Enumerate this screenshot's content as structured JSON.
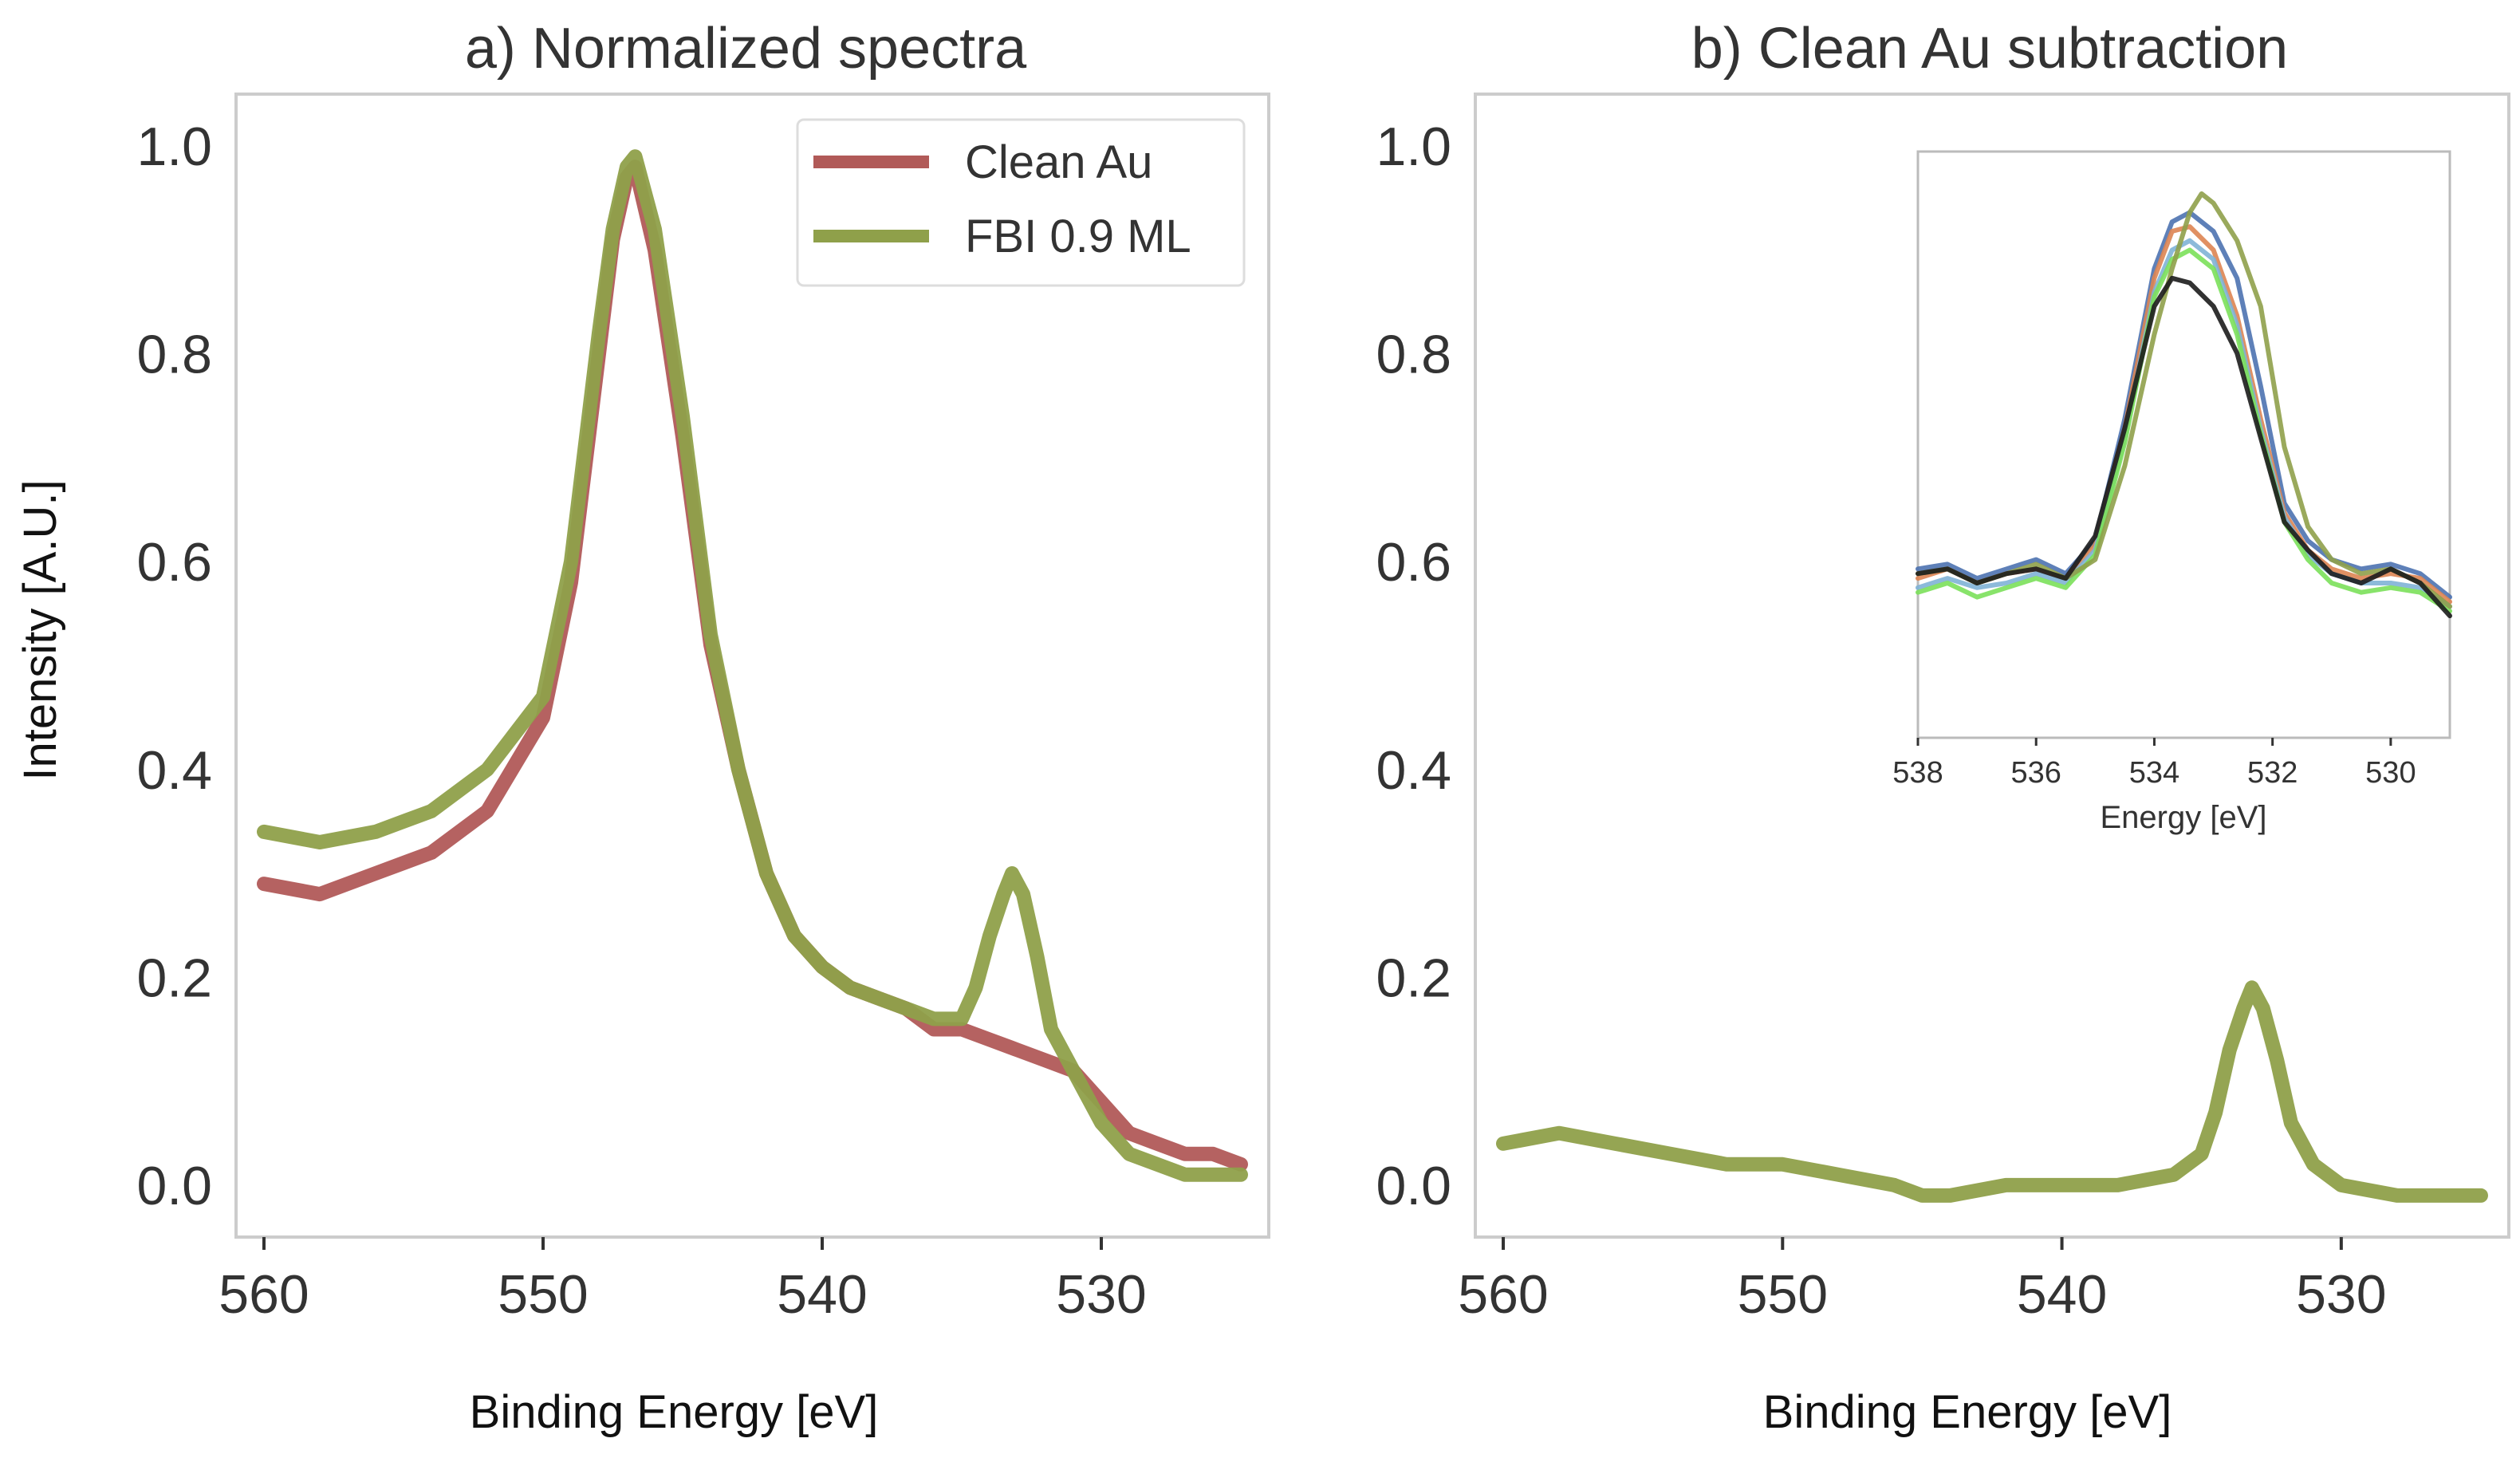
{
  "chart_data": [
    {
      "type": "line",
      "title": "a) Normalized spectra",
      "xlabel": "Binding Energy [eV]",
      "ylabel": "Intensity [A.U.]",
      "xlim": [
        561,
        524
      ],
      "ylim": [
        -0.05,
        1.05
      ],
      "x_reversed": true,
      "xticks": [
        560,
        550,
        540,
        530
      ],
      "xtick_labels": [
        "560",
        "550",
        "540",
        "530"
      ],
      "yticks": [
        0.0,
        0.2,
        0.4,
        0.6,
        0.8,
        1.0
      ],
      "ytick_labels": [
        "0.0",
        "0.2",
        "0.4",
        "0.6",
        "0.8",
        "1.0"
      ],
      "grid": false,
      "legend_position": "top-right",
      "series": [
        {
          "name": "Clean Au",
          "color": "#b15a58",
          "x": [
            560,
            558,
            556,
            554,
            552,
            550,
            549,
            548,
            547.5,
            547,
            546.7,
            546,
            545,
            544,
            543,
            542,
            541,
            540,
            539,
            538,
            537,
            536,
            535,
            534,
            533,
            532,
            531,
            530,
            529,
            528,
            527,
            526,
            525
          ],
          "y": [
            0.29,
            0.28,
            0.3,
            0.32,
            0.36,
            0.45,
            0.58,
            0.8,
            0.91,
            0.97,
            0.98,
            0.9,
            0.72,
            0.52,
            0.4,
            0.3,
            0.24,
            0.21,
            0.19,
            0.18,
            0.17,
            0.15,
            0.15,
            0.14,
            0.13,
            0.12,
            0.11,
            0.08,
            0.05,
            0.04,
            0.03,
            0.03,
            0.02
          ]
        },
        {
          "name": "FBI 0.9 ML",
          "color": "#8fa04a",
          "x": [
            560,
            558,
            556,
            554,
            552,
            550,
            549,
            548,
            547.5,
            547,
            546.7,
            546,
            545,
            544,
            543,
            542,
            541,
            540,
            539,
            538,
            537,
            536,
            535,
            534.5,
            534,
            533.5,
            533.2,
            532.8,
            532.3,
            531.8,
            531,
            530,
            529,
            528,
            527,
            526,
            525
          ],
          "y": [
            0.34,
            0.33,
            0.34,
            0.36,
            0.4,
            0.47,
            0.6,
            0.82,
            0.92,
            0.98,
            0.99,
            0.92,
            0.74,
            0.53,
            0.4,
            0.3,
            0.24,
            0.21,
            0.19,
            0.18,
            0.17,
            0.16,
            0.16,
            0.19,
            0.24,
            0.28,
            0.3,
            0.28,
            0.22,
            0.15,
            0.11,
            0.06,
            0.03,
            0.02,
            0.01,
            0.01,
            0.01
          ]
        }
      ]
    },
    {
      "type": "line",
      "title": "b) Clean Au subtraction",
      "xlabel": "Binding Energy [eV]",
      "xlim": [
        561,
        524
      ],
      "ylim": [
        -0.05,
        1.05
      ],
      "x_reversed": true,
      "xticks": [
        560,
        550,
        540,
        530
      ],
      "xtick_labels": [
        "560",
        "550",
        "540",
        "530"
      ],
      "yticks": [
        0.0,
        0.2,
        0.4,
        0.6,
        0.8,
        1.0
      ],
      "ytick_labels": [
        "0.0",
        "0.2",
        "0.4",
        "0.6",
        "0.8",
        "1.0"
      ],
      "grid": false,
      "series": [
        {
          "color": "#8fa04a",
          "x": [
            560,
            558,
            556,
            554,
            552,
            550,
            548,
            546,
            545,
            544,
            542,
            540,
            538,
            536,
            535,
            534.5,
            534,
            533.5,
            533.2,
            532.8,
            532.3,
            531.8,
            531,
            530,
            528,
            526,
            525
          ],
          "y": [
            0.04,
            0.05,
            0.04,
            0.03,
            0.02,
            0.02,
            0.01,
            0.0,
            -0.01,
            -0.01,
            0.0,
            0.0,
            0.0,
            0.01,
            0.03,
            0.07,
            0.13,
            0.17,
            0.19,
            0.17,
            0.12,
            0.06,
            0.02,
            0.0,
            -0.01,
            -0.01,
            -0.01
          ]
        }
      ],
      "inset": {
        "xlabel": "Energy [eV]",
        "xlim": [
          538,
          529
        ],
        "ylim": [
          -0.2,
          1.05
        ],
        "x_reversed": true,
        "xticks": [
          538,
          536,
          534,
          532,
          530
        ],
        "xtick_labels": [
          "538",
          "536",
          "534",
          "532",
          "530"
        ],
        "series": [
          {
            "color": "#4c72b0",
            "x": [
              538,
              537.5,
              537,
              536.5,
              536,
              535.5,
              535,
              534.5,
              534,
              533.7,
              533.4,
              533,
              532.6,
              532.2,
              531.8,
              531.4,
              531,
              530.5,
              530,
              529.5,
              529
            ],
            "y": [
              0.16,
              0.17,
              0.14,
              0.16,
              0.18,
              0.15,
              0.22,
              0.48,
              0.8,
              0.9,
              0.92,
              0.88,
              0.78,
              0.55,
              0.3,
              0.22,
              0.18,
              0.16,
              0.17,
              0.15,
              0.1
            ]
          },
          {
            "color": "#dd8452",
            "x": [
              538,
              537.5,
              537,
              536.5,
              536,
              535.5,
              535,
              534.5,
              534,
              533.7,
              533.4,
              533,
              532.6,
              532.2,
              531.8,
              531.4,
              531,
              530.5,
              530,
              529.5,
              529
            ],
            "y": [
              0.14,
              0.16,
              0.13,
              0.15,
              0.16,
              0.14,
              0.21,
              0.46,
              0.78,
              0.88,
              0.89,
              0.84,
              0.7,
              0.48,
              0.28,
              0.2,
              0.16,
              0.14,
              0.15,
              0.14,
              0.09
            ]
          },
          {
            "color": "#7fb2d6",
            "x": [
              538,
              537.5,
              537,
              536.5,
              536,
              535.5,
              535,
              534.5,
              534,
              533.7,
              533.4,
              533,
              532.6,
              532.2,
              531.8,
              531.4,
              531,
              530.5,
              530,
              529.5,
              529
            ],
            "y": [
              0.12,
              0.14,
              0.12,
              0.13,
              0.15,
              0.13,
              0.2,
              0.44,
              0.75,
              0.84,
              0.86,
              0.82,
              0.68,
              0.46,
              0.27,
              0.19,
              0.15,
              0.13,
              0.13,
              0.12,
              0.08
            ]
          },
          {
            "color": "#7be05a",
            "x": [
              538,
              537.5,
              537,
              536.5,
              536,
              535.5,
              535,
              534.5,
              534,
              533.7,
              533.4,
              533,
              532.6,
              532.2,
              531.8,
              531.4,
              531,
              530.5,
              530,
              529.5,
              529
            ],
            "y": [
              0.11,
              0.13,
              0.1,
              0.12,
              0.14,
              0.12,
              0.19,
              0.43,
              0.74,
              0.82,
              0.84,
              0.8,
              0.66,
              0.45,
              0.26,
              0.18,
              0.13,
              0.11,
              0.12,
              0.11,
              0.07
            ]
          },
          {
            "color": "#8fa04a",
            "x": [
              538,
              537.5,
              537,
              536.5,
              536,
              535.5,
              535,
              534.5,
              534,
              533.7,
              533.4,
              533.2,
              533,
              532.6,
              532.2,
              531.8,
              531.4,
              531,
              530.5,
              530,
              529.5,
              529
            ],
            "y": [
              0.15,
              0.16,
              0.13,
              0.15,
              0.17,
              0.14,
              0.18,
              0.38,
              0.66,
              0.8,
              0.92,
              0.96,
              0.94,
              0.86,
              0.72,
              0.42,
              0.25,
              0.18,
              0.15,
              0.16,
              0.13,
              0.08
            ]
          },
          {
            "color": "#1c1c1c",
            "x": [
              538,
              537.5,
              537,
              536.5,
              536,
              535.5,
              535,
              534.5,
              534,
              533.7,
              533.4,
              533,
              532.6,
              532.2,
              531.8,
              531.4,
              531,
              530.5,
              530,
              529.5,
              529
            ],
            "y": [
              0.15,
              0.16,
              0.13,
              0.15,
              0.16,
              0.14,
              0.23,
              0.46,
              0.72,
              0.78,
              0.77,
              0.72,
              0.62,
              0.44,
              0.26,
              0.2,
              0.15,
              0.13,
              0.16,
              0.13,
              0.06
            ]
          }
        ]
      }
    }
  ]
}
